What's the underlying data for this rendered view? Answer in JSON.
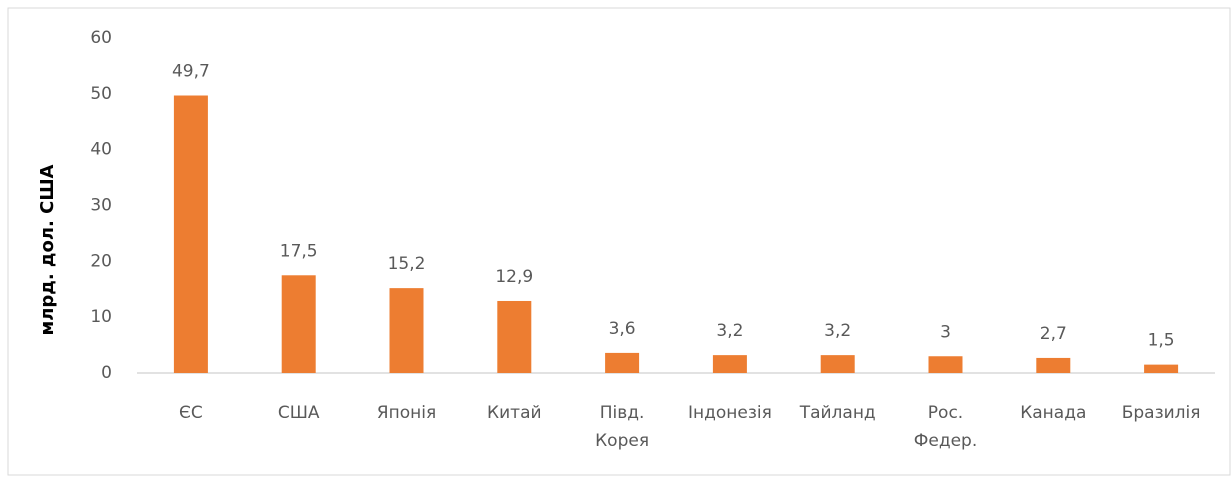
{
  "chart_data": {
    "type": "bar",
    "y_label": "млрд. дол. США",
    "categories": [
      "ЄС",
      "США",
      "Японія",
      "Китай",
      "Півд. Корея",
      "Індонезія",
      "Тайланд",
      "Рос. Федер.",
      "Канада",
      "Бразилія"
    ],
    "values": [
      49.7,
      17.5,
      15.2,
      12.9,
      3.6,
      3.2,
      3.2,
      3,
      2.7,
      1.5
    ],
    "value_labels": [
      "49,7",
      "17,5",
      "15,2",
      "12,9",
      "3,6",
      "3,2",
      "3,2",
      "3",
      "2,7",
      "1,5"
    ],
    "color": "#ed7d31",
    "ylim": [
      0,
      60
    ],
    "yticks": [
      0,
      10,
      20,
      30,
      40,
      50,
      60
    ],
    "grid": false
  }
}
